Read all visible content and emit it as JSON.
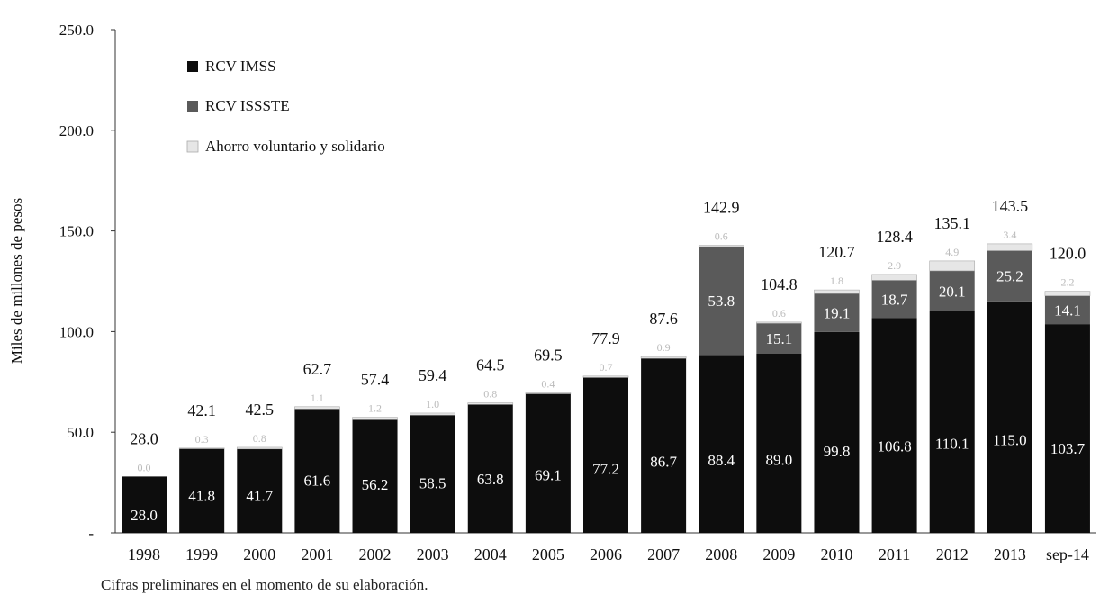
{
  "chart_data": {
    "type": "bar",
    "stacked": true,
    "ylabel": "Miles de millones de pesos",
    "ylim": [
      0,
      250
    ],
    "yticks": [
      "-",
      "50.0",
      "100.0",
      "150.0",
      "200.0",
      "250.0"
    ],
    "categories": [
      "1998",
      "1999",
      "2000",
      "2001",
      "2002",
      "2003",
      "2004",
      "2005",
      "2006",
      "2007",
      "2008",
      "2009",
      "2010",
      "2011",
      "2012",
      "2013",
      "sep-14"
    ],
    "series": [
      {
        "name": "RCV IMSS",
        "color": "#0d0d0d",
        "values": [
          28.0,
          41.8,
          41.7,
          61.6,
          56.2,
          58.5,
          63.8,
          69.1,
          77.2,
          86.7,
          88.4,
          89.0,
          99.8,
          106.8,
          110.1,
          115.0,
          103.7
        ],
        "labels": [
          "28.0",
          "41.8",
          "41.7",
          "61.6",
          "56.2",
          "58.5",
          "63.8",
          "69.1",
          "77.2",
          "86.7",
          "88.4",
          "89.0",
          "99.8",
          "106.8",
          "110.1",
          "115.0",
          "103.7"
        ]
      },
      {
        "name": "RCV ISSSTE",
        "color": "#5a5a5a",
        "values": [
          0,
          0,
          0,
          0,
          0,
          0,
          0,
          0,
          0,
          0,
          53.8,
          15.1,
          19.1,
          18.7,
          20.1,
          25.2,
          14.1
        ],
        "labels": [
          "",
          "",
          "",
          "",
          "",
          "",
          "",
          "",
          "",
          "",
          "53.8",
          "15.1",
          "19.1",
          "18.7",
          "20.1",
          "25.2",
          "14.1"
        ]
      },
      {
        "name": "Ahorro voluntario y solidario",
        "color": "#e6e6e6",
        "values": [
          0,
          0.3,
          0.8,
          1.1,
          1.2,
          1.0,
          0.8,
          0.4,
          0.7,
          0.9,
          0.6,
          0.6,
          1.8,
          2.9,
          4.9,
          3.4,
          2.2
        ],
        "labels": [
          "0.0",
          "0.3",
          "0.8",
          "1.1",
          "1.2",
          "1.0",
          "0.8",
          "0.4",
          "0.7",
          "0.9",
          "0.6",
          "0.6",
          "1.8",
          "2.9",
          "4.9",
          "3.4",
          "2.2"
        ]
      }
    ],
    "totals": [
      "28.0",
      "42.1",
      "42.5",
      "62.7",
      "57.4",
      "59.4",
      "64.5",
      "69.5",
      "77.9",
      "87.6",
      "142.9",
      "104.8",
      "120.7",
      "128.4",
      "135.1",
      "143.5",
      "120.0"
    ],
    "legend_position": "top-left",
    "grid": false
  },
  "footnote": "Cifras preliminares en el momento de su elaboración."
}
